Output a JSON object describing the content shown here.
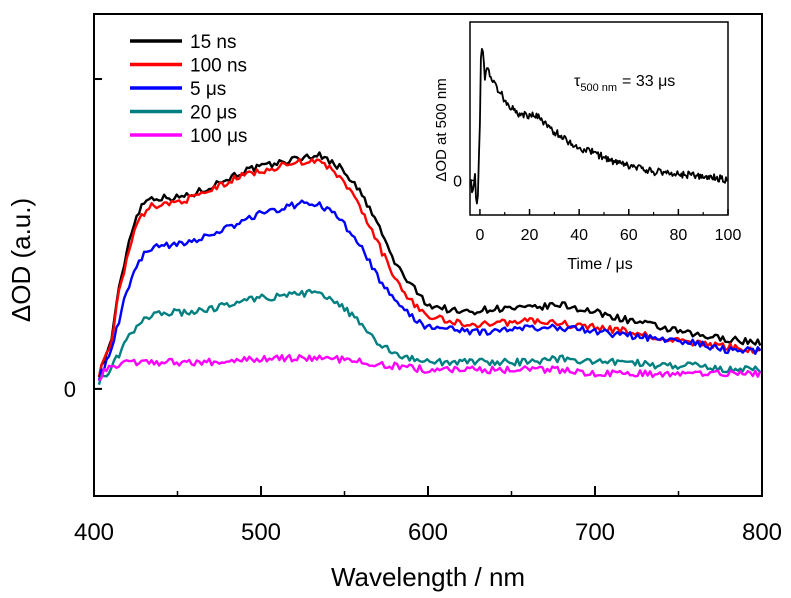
{
  "chart_data": [
    {
      "type": "line",
      "xlabel": "Wavelength / nm",
      "ylabel": "ΔOD (a.u.)",
      "xlim": [
        400,
        800
      ],
      "ylim": [
        -0.28,
        0.98
      ],
      "xticks": [
        400,
        500,
        600,
        700,
        800
      ],
      "xtick_labels": [
        "400",
        "500",
        "600",
        "700",
        "800"
      ],
      "ytick_label": "0",
      "ytick_value": 0,
      "legend": "top-left",
      "series": [
        {
          "name": "15 ns",
          "color": "#000000",
          "x": [
            403,
            410,
            415,
            420,
            425,
            430,
            435,
            440,
            450,
            460,
            470,
            480,
            490,
            500,
            510,
            520,
            530,
            535,
            540,
            550,
            560,
            570,
            580,
            590,
            600,
            610,
            620,
            640,
            660,
            680,
            700,
            720,
            740,
            760,
            780,
            800
          ],
          "y": [
            0.04,
            0.12,
            0.26,
            0.37,
            0.45,
            0.49,
            0.5,
            0.5,
            0.5,
            0.51,
            0.53,
            0.55,
            0.57,
            0.58,
            0.59,
            0.6,
            0.61,
            0.61,
            0.6,
            0.57,
            0.51,
            0.43,
            0.33,
            0.27,
            0.22,
            0.21,
            0.2,
            0.21,
            0.21,
            0.22,
            0.2,
            0.18,
            0.16,
            0.14,
            0.13,
            0.12
          ]
        },
        {
          "name": "100 ns",
          "color": "#ff0000",
          "x": [
            403,
            410,
            415,
            420,
            425,
            430,
            435,
            440,
            450,
            460,
            470,
            480,
            490,
            500,
            510,
            520,
            530,
            535,
            540,
            550,
            560,
            570,
            580,
            590,
            600,
            610,
            620,
            640,
            660,
            680,
            700,
            720,
            740,
            760,
            780,
            800
          ],
          "y": [
            0.04,
            0.12,
            0.25,
            0.35,
            0.42,
            0.46,
            0.48,
            0.48,
            0.49,
            0.5,
            0.52,
            0.54,
            0.56,
            0.57,
            0.58,
            0.59,
            0.6,
            0.59,
            0.58,
            0.54,
            0.47,
            0.38,
            0.29,
            0.23,
            0.19,
            0.18,
            0.17,
            0.17,
            0.18,
            0.17,
            0.16,
            0.15,
            0.13,
            0.12,
            0.11,
            0.1
          ]
        },
        {
          "name": "5 μs",
          "color": "#0000ff",
          "x": [
            403,
            410,
            415,
            420,
            425,
            430,
            435,
            440,
            450,
            460,
            470,
            480,
            490,
            500,
            510,
            520,
            530,
            535,
            540,
            550,
            560,
            570,
            580,
            590,
            600,
            610,
            620,
            640,
            660,
            680,
            700,
            720,
            740,
            760,
            780,
            800
          ],
          "y": [
            0.03,
            0.09,
            0.18,
            0.26,
            0.32,
            0.35,
            0.37,
            0.37,
            0.38,
            0.39,
            0.4,
            0.42,
            0.44,
            0.46,
            0.47,
            0.48,
            0.49,
            0.48,
            0.47,
            0.43,
            0.37,
            0.29,
            0.23,
            0.19,
            0.16,
            0.16,
            0.15,
            0.15,
            0.16,
            0.16,
            0.15,
            0.14,
            0.13,
            0.12,
            0.1,
            0.1
          ]
        },
        {
          "name": "20 μs",
          "color": "#008080",
          "x": [
            403,
            410,
            415,
            420,
            425,
            430,
            440,
            450,
            460,
            470,
            480,
            490,
            500,
            510,
            520,
            530,
            540,
            550,
            560,
            570,
            580,
            590,
            600,
            620,
            640,
            660,
            680,
            700,
            720,
            740,
            760,
            780,
            800
          ],
          "y": [
            0.02,
            0.05,
            0.09,
            0.13,
            0.16,
            0.18,
            0.2,
            0.2,
            0.2,
            0.21,
            0.22,
            0.23,
            0.24,
            0.24,
            0.25,
            0.25,
            0.24,
            0.21,
            0.17,
            0.12,
            0.09,
            0.08,
            0.07,
            0.07,
            0.07,
            0.07,
            0.08,
            0.07,
            0.07,
            0.06,
            0.06,
            0.05,
            0.05
          ]
        },
        {
          "name": "100 μs",
          "color": "#ff00ff",
          "x": [
            403,
            410,
            420,
            430,
            440,
            460,
            480,
            500,
            520,
            530,
            540,
            560,
            580,
            600,
            620,
            640,
            660,
            680,
            700,
            720,
            740,
            760,
            780,
            800
          ],
          "y": [
            0.03,
            0.06,
            0.07,
            0.07,
            0.07,
            0.07,
            0.07,
            0.08,
            0.08,
            0.08,
            0.08,
            0.07,
            0.06,
            0.05,
            0.05,
            0.05,
            0.05,
            0.05,
            0.04,
            0.04,
            0.04,
            0.04,
            0.04,
            0.04
          ]
        }
      ]
    },
    {
      "type": "line",
      "placement": "inset top-right",
      "xlabel": "Time / μs",
      "ylabel": "ΔOD at 500 nm",
      "xlim": [
        -4,
        100
      ],
      "ylim": [
        -0.12,
        0.55
      ],
      "xticks": [
        0,
        20,
        40,
        60,
        80,
        100
      ],
      "xtick_labels": [
        "0",
        "20",
        "40",
        "60",
        "80",
        "100"
      ],
      "ytick_label": "0",
      "ytick_value": 0,
      "annotation": {
        "symbol": "τ",
        "subscript": "500 nm",
        "text": "= 33 μs"
      },
      "series": [
        {
          "name": "ΔOD at 500 nm",
          "color": "#000000",
          "x": [
            -4,
            -3,
            -2,
            -1.5,
            -1,
            0,
            0.5,
            1,
            2,
            3,
            4,
            5,
            6,
            8,
            10,
            12,
            15,
            18,
            20,
            22,
            25,
            28,
            30,
            35,
            40,
            45,
            50,
            55,
            60,
            65,
            70,
            75,
            80,
            85,
            90,
            95,
            100
          ],
          "y": [
            0.01,
            -0.04,
            0.02,
            -0.08,
            -0.1,
            0.2,
            0.48,
            0.46,
            0.36,
            0.4,
            0.37,
            0.35,
            0.33,
            0.31,
            0.28,
            0.26,
            0.23,
            0.23,
            0.22,
            0.23,
            0.21,
            0.18,
            0.17,
            0.14,
            0.11,
            0.1,
            0.08,
            0.06,
            0.05,
            0.04,
            0.03,
            0.03,
            0.02,
            0.02,
            0.01,
            0.01,
            0.0
          ]
        }
      ]
    }
  ]
}
